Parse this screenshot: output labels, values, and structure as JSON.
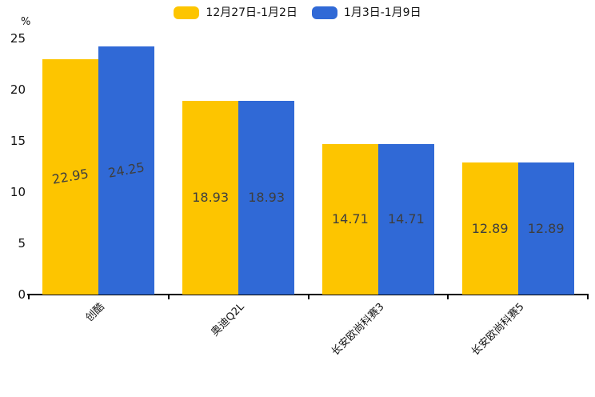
{
  "chart_data": {
    "type": "bar",
    "title": "",
    "categories": [
      "创酷",
      "奥迪Q2L",
      "长安欧尚科赛3",
      "长安欧尚科赛5"
    ],
    "series": [
      {
        "name": "12月27日-1月2日",
        "color": "#FDC500",
        "values": [
          22.95,
          18.93,
          14.71,
          12.89
        ]
      },
      {
        "name": "1月3日-1月9日",
        "color": "#3069D6",
        "values": [
          24.25,
          18.93,
          14.71,
          12.89
        ]
      }
    ],
    "ylabel": "%",
    "ylim": [
      0,
      25
    ],
    "yticks": [
      0,
      5,
      10,
      15,
      20,
      25
    ],
    "grid": false,
    "legend_position": "top-center",
    "value_label_position": "inside-middle",
    "xtick_rotation_deg": 45,
    "axis_color": "#000000",
    "value_label_color": "#3e3e3e"
  }
}
